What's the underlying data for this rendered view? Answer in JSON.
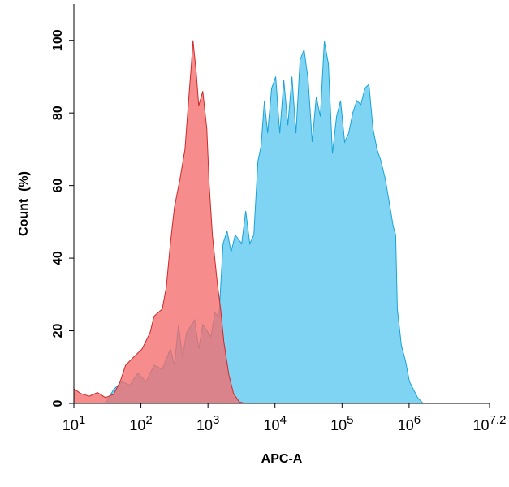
{
  "chart_data": {
    "type": "area",
    "xscale": "log",
    "x_label": "APC-A",
    "y_label": "Count  (%)",
    "xlim": [
      10,
      15848931.92
    ],
    "ylim": [
      0,
      110
    ],
    "xticks": [
      {
        "value": 10,
        "label": {
          "base": "10",
          "exponent": "1"
        }
      },
      {
        "value": 100,
        "label": {
          "base": "10",
          "exponent": "2"
        }
      },
      {
        "value": 1000,
        "label": {
          "base": "10",
          "exponent": "3"
        }
      },
      {
        "value": 10000,
        "label": {
          "base": "10",
          "exponent": "4"
        }
      },
      {
        "value": 100000,
        "label": {
          "base": "10",
          "exponent": "5"
        }
      },
      {
        "value": 1000000,
        "label": {
          "base": "10",
          "exponent": "6"
        }
      },
      {
        "value": 15848931.92,
        "label": {
          "base": "10",
          "exponent": "7.2"
        }
      }
    ],
    "yticks": [
      0,
      20,
      40,
      60,
      80,
      100
    ],
    "series": [
      {
        "color": "#1aa3d6",
        "fill": "#7fd4f4",
        "x": [
          29.6,
          39,
          52,
          68,
          90,
          119,
          157,
          208,
          275,
          316,
          363,
          417,
          480,
          634,
          728,
          837,
          1106,
          1271,
          1459,
          1679,
          1928,
          2218,
          2547,
          3184,
          3656,
          4207,
          4831,
          5559,
          6209,
          6950,
          7762,
          8913,
          10250,
          11780,
          13550,
          15560,
          17910,
          20560,
          23660,
          27160,
          31260,
          35890,
          41300,
          47430,
          54450,
          62660,
          71940,
          82790,
          95060,
          109400,
          125600,
          144500,
          166000,
          191000,
          219300,
          251800,
          289700,
          332700,
          382800,
          439500,
          505800,
          580700,
          631000,
          668300,
          767400,
          883100,
          1014000,
          1164000,
          1340000,
          1626000
        ],
        "values": [
          0,
          3.8,
          6,
          5,
          8.3,
          6,
          10.5,
          9.4,
          15,
          10.5,
          21.7,
          12.8,
          19.5,
          23,
          15,
          21.7,
          18.4,
          25,
          23.8,
          44,
          47.5,
          41.7,
          46.4,
          44,
          53,
          44,
          46.4,
          66.6,
          71,
          83.4,
          74.4,
          86.8,
          90,
          74.4,
          89,
          76.6,
          90,
          74.4,
          94.6,
          97.5,
          89,
          72,
          84.5,
          79,
          99.8,
          93.5,
          68.8,
          79,
          83.4,
          72,
          74.4,
          80,
          83.4,
          82.3,
          86.8,
          87.9,
          75.6,
          70,
          66.6,
          62,
          55.4,
          48.7,
          46.4,
          26,
          16,
          11.7,
          6,
          3.8,
          1.6,
          0
        ]
      },
      {
        "color": "#cc2a2a",
        "fill": "#f56b6b",
        "x": [
          10,
          12.8,
          17,
          22.4,
          29.6,
          39,
          49,
          59,
          78.5,
          104,
          137,
          157,
          208,
          239,
          275,
          316,
          384,
          454,
          507,
          566,
          598,
          670,
          728,
          837,
          962,
          1045,
          1169,
          1381,
          1545,
          1726,
          2042,
          2410,
          2931,
          3656
        ],
        "values": [
          4,
          2.7,
          2,
          3,
          1.6,
          2.5,
          6,
          10.5,
          12.8,
          15,
          19.5,
          24,
          26,
          32,
          44,
          54,
          62,
          70,
          82,
          93.5,
          100,
          91,
          82,
          86,
          75.6,
          60,
          46,
          33,
          26,
          17,
          8,
          2.7,
          0.4,
          0
        ]
      }
    ]
  }
}
